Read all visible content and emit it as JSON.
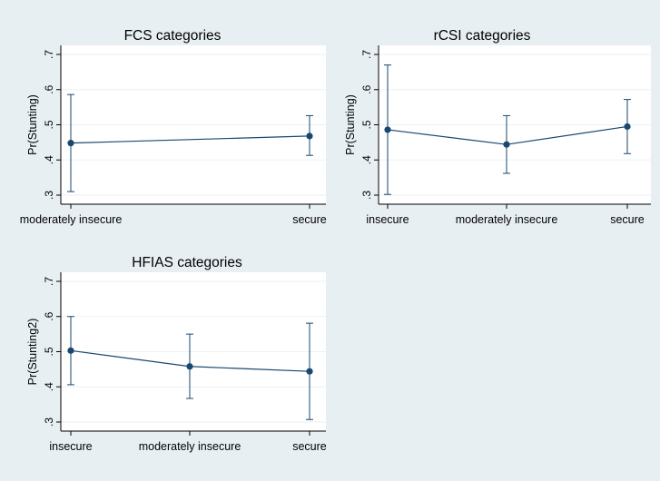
{
  "colors": {
    "background": "#e8eff3",
    "plot_area": "#ffffff",
    "line": "#1a476f",
    "marker": "#1a476f",
    "ci": "#1a476f",
    "grid": "#eaf2f3",
    "axis": "#000000"
  },
  "chart_data": [
    {
      "type": "line",
      "title": "FCS categories",
      "ylabel": "Pr(Stunting)",
      "categories": [
        "moderately insecure",
        "secure"
      ],
      "values": [
        0.448,
        0.468
      ],
      "ci_lower": [
        0.31,
        0.413
      ],
      "ci_upper": [
        0.586,
        0.526
      ],
      "yticks": [
        ".3",
        ".4",
        ".5",
        ".6",
        ".7"
      ],
      "ylim": [
        0.3,
        0.7
      ],
      "grid": true
    },
    {
      "type": "line",
      "title": "rCSI categories",
      "ylabel": "Pr(Stunting)",
      "categories": [
        "insecure",
        "moderately insecure",
        "secure"
      ],
      "values": [
        0.486,
        0.444,
        0.495
      ],
      "ci_lower": [
        0.302,
        0.362,
        0.418
      ],
      "ci_upper": [
        0.67,
        0.526,
        0.572
      ],
      "yticks": [
        ".3",
        ".4",
        ".5",
        ".6",
        ".7"
      ],
      "ylim": [
        0.3,
        0.7
      ],
      "grid": true
    },
    {
      "type": "line",
      "title": "HFIAS categories",
      "ylabel": "Pr(Stunting2)",
      "categories": [
        "insecure",
        "moderately insecure",
        "secure"
      ],
      "values": [
        0.503,
        0.458,
        0.444
      ],
      "ci_lower": [
        0.406,
        0.367,
        0.307
      ],
      "ci_upper": [
        0.6,
        0.55,
        0.581
      ],
      "yticks": [
        ".3",
        ".4",
        ".5",
        ".6",
        ".7"
      ],
      "ylim": [
        0.3,
        0.7
      ],
      "grid": true
    }
  ]
}
